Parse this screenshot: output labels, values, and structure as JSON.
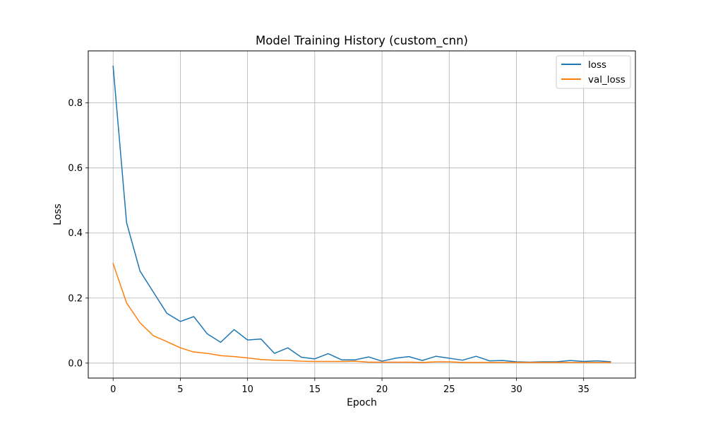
{
  "chart_data": {
    "type": "line",
    "title": "Model Training History (custom_cnn)",
    "xlabel": "Epoch",
    "ylabel": "Loss",
    "xlim": [
      -1.85,
      38.85
    ],
    "ylim": [
      -0.046,
      0.96
    ],
    "xticks": [
      0,
      5,
      10,
      15,
      20,
      25,
      30,
      35
    ],
    "yticks": [
      0.0,
      0.2,
      0.4,
      0.6,
      0.8
    ],
    "ytick_labels": [
      "0.0",
      "0.2",
      "0.4",
      "0.6",
      "0.8"
    ],
    "grid": true,
    "legend_position": "top-right",
    "x": [
      0,
      1,
      2,
      3,
      4,
      5,
      6,
      7,
      8,
      9,
      10,
      11,
      12,
      13,
      14,
      15,
      16,
      17,
      18,
      19,
      20,
      21,
      22,
      23,
      24,
      25,
      26,
      27,
      28,
      29,
      30,
      31,
      32,
      33,
      34,
      35,
      36,
      37
    ],
    "series": [
      {
        "name": "loss",
        "color": "#1f77b4",
        "values": [
          0.913,
          0.432,
          0.283,
          0.218,
          0.153,
          0.128,
          0.143,
          0.09,
          0.064,
          0.103,
          0.071,
          0.074,
          0.03,
          0.047,
          0.018,
          0.013,
          0.029,
          0.01,
          0.01,
          0.019,
          0.006,
          0.015,
          0.02,
          0.008,
          0.021,
          0.015,
          0.009,
          0.021,
          0.007,
          0.008,
          0.004,
          0.003,
          0.004,
          0.004,
          0.008,
          0.005,
          0.007,
          0.004
        ]
      },
      {
        "name": "val_loss",
        "color": "#ff7f0e",
        "values": [
          0.306,
          0.185,
          0.124,
          0.084,
          0.066,
          0.047,
          0.034,
          0.03,
          0.023,
          0.02,
          0.016,
          0.011,
          0.009,
          0.008,
          0.006,
          0.005,
          0.005,
          0.005,
          0.006,
          0.003,
          0.003,
          0.003,
          0.003,
          0.002,
          0.004,
          0.004,
          0.002,
          0.002,
          0.002,
          0.002,
          0.002,
          0.002,
          0.002,
          0.002,
          0.002,
          0.002,
          0.002,
          0.002
        ]
      }
    ]
  }
}
